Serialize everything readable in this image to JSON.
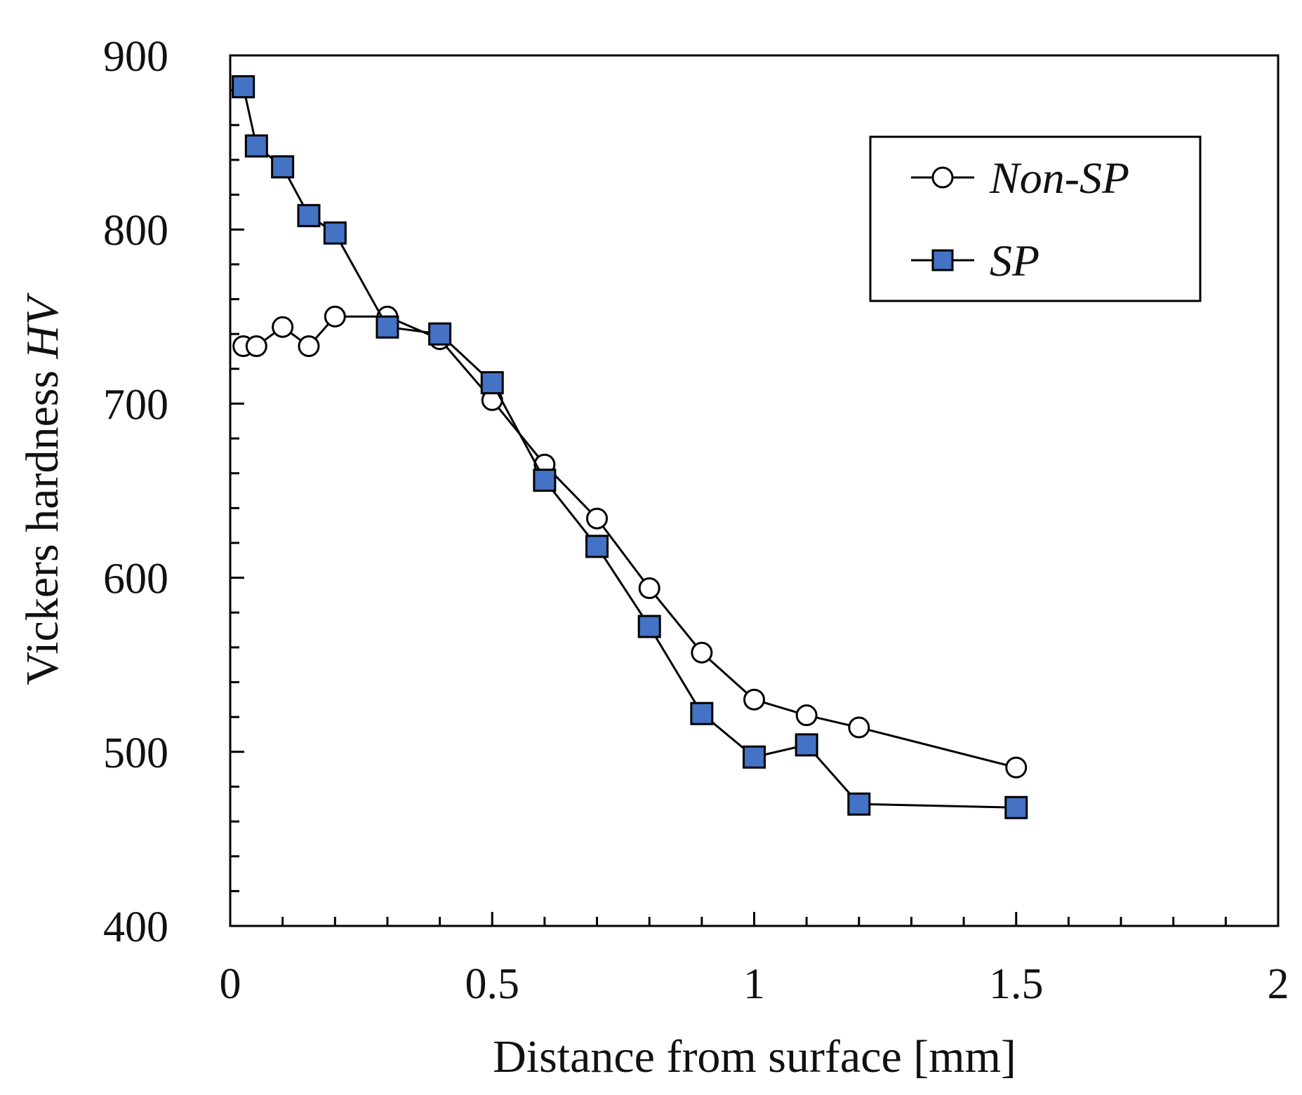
{
  "chart_data": {
    "type": "line",
    "title": "",
    "xlabel": "Distance from surface [mm]",
    "ylabel_text": "Vickers hardness ",
    "ylabel_var": "HV",
    "xlim": [
      0,
      2
    ],
    "ylim": [
      400,
      900
    ],
    "xticks": [
      0,
      0.5,
      1,
      1.5,
      2
    ],
    "xtick_labels": [
      "0",
      "0.5",
      "1",
      "1.5",
      "2"
    ],
    "yticks": [
      400,
      500,
      600,
      700,
      800,
      900
    ],
    "ytick_labels": [
      "400",
      "500",
      "600",
      "700",
      "800",
      "900"
    ],
    "x_minor_step": 0.1,
    "y_minor_step": 20,
    "grid": false,
    "legend_position": "top-right",
    "series": [
      {
        "name": "Non-SP",
        "marker": "circle",
        "fill": "#ffffff",
        "x": [
          0.025,
          0.05,
          0.1,
          0.15,
          0.2,
          0.3,
          0.4,
          0.5,
          0.6,
          0.7,
          0.8,
          0.9,
          1.0,
          1.1,
          1.2,
          1.5
        ],
        "y": [
          733,
          733,
          744,
          733,
          750,
          750,
          737,
          702,
          665,
          634,
          594,
          557,
          530,
          521,
          514,
          491
        ]
      },
      {
        "name": "SP",
        "marker": "square",
        "fill": "#4472c4",
        "x": [
          0.025,
          0.05,
          0.1,
          0.15,
          0.2,
          0.3,
          0.4,
          0.5,
          0.6,
          0.7,
          0.8,
          0.9,
          1.0,
          1.1,
          1.2,
          1.5
        ],
        "y": [
          882,
          848,
          836,
          808,
          798,
          744,
          740,
          712,
          656,
          618,
          572,
          522,
          497,
          504,
          470,
          468
        ]
      }
    ]
  }
}
